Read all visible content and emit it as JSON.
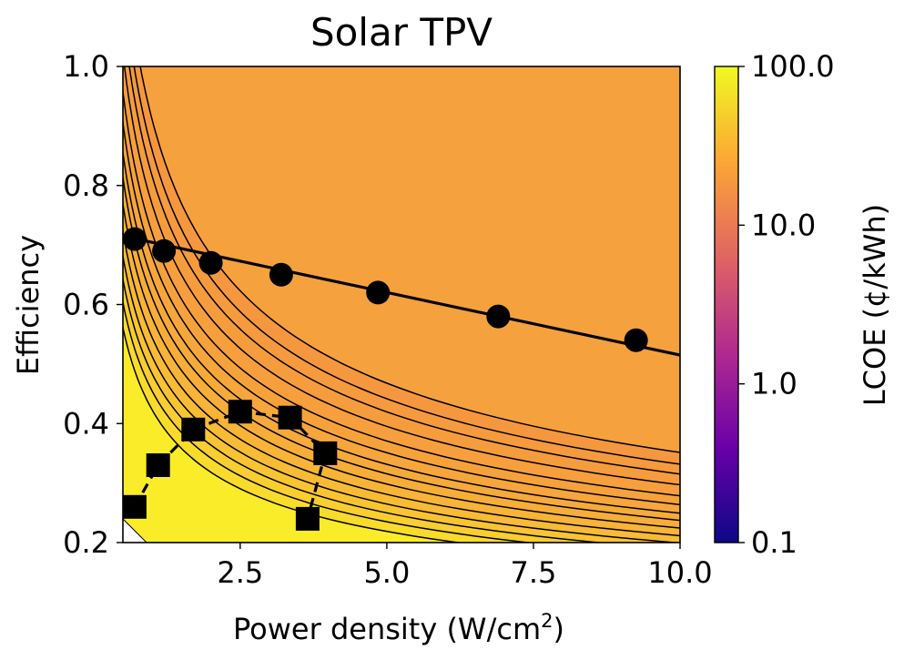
{
  "chart_data": {
    "type": "contour",
    "title": "Solar TPV",
    "xlabel": "Power density (W/cm",
    "xlabel_sup": "2",
    "xlabel_close": ")",
    "ylabel": "Efficiency",
    "xlim": [
      0.5,
      10.0
    ],
    "ylim": [
      0.2,
      1.0
    ],
    "xticks": [
      2.5,
      5.0,
      7.5,
      10.0
    ],
    "xtick_labels": [
      "2.5",
      "5.0",
      "7.5",
      "10.0"
    ],
    "yticks": [
      0.2,
      0.4,
      0.6,
      0.8,
      1.0
    ],
    "ytick_labels": [
      "0.2",
      "0.4",
      "0.6",
      "0.8",
      "1.0"
    ],
    "contour_levels": [
      15,
      16.5,
      18,
      20,
      22.5,
      25,
      28,
      31,
      35,
      40,
      46,
      53,
      62,
      75
    ],
    "colorbar": {
      "label": "LCOE (¢/kWh)",
      "scale": "log",
      "range": [
        0.1,
        100.0
      ],
      "ticks": [
        0.1,
        1.0,
        10.0,
        100.0
      ],
      "tick_labels": [
        "0.1",
        "1.0",
        "10.0",
        "100.0"
      ],
      "colormap": [
        "#0d0887",
        "#6a00a8",
        "#b12a90",
        "#e16462",
        "#fca636",
        "#f0f921"
      ]
    },
    "series": [
      {
        "marker": "circle",
        "line": "solid",
        "x": [
          0.7,
          1.2,
          2.0,
          3.2,
          4.85,
          6.9,
          9.25
        ],
        "y": [
          0.71,
          0.69,
          0.67,
          0.65,
          0.62,
          0.58,
          0.54
        ],
        "trend_x": [
          0.5,
          10.0
        ],
        "trend_y": [
          0.715,
          0.515
        ]
      },
      {
        "marker": "square",
        "line": "dashed",
        "x": [
          0.7,
          1.1,
          1.7,
          2.5,
          3.35,
          3.95,
          3.65
        ],
        "y": [
          0.26,
          0.33,
          0.39,
          0.42,
          0.41,
          0.35,
          0.24
        ]
      }
    ]
  }
}
